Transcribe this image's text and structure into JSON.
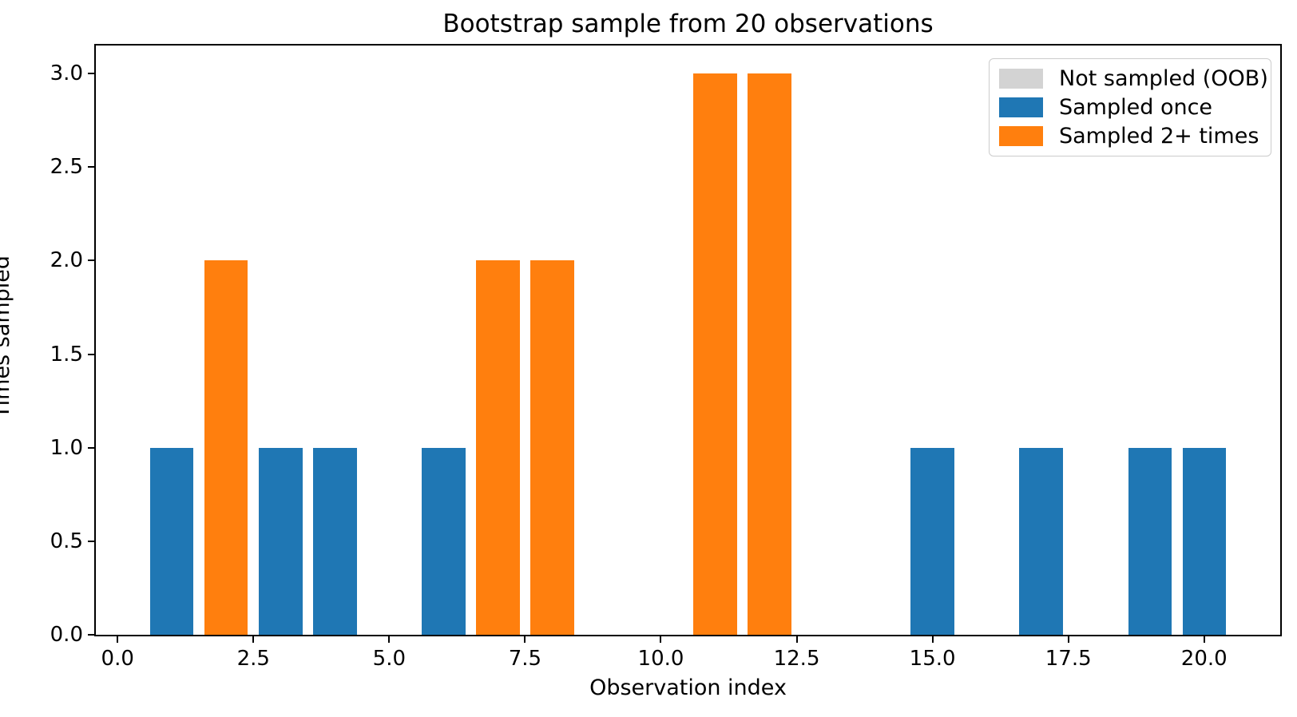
{
  "chart_data": {
    "type": "bar",
    "title": "Bootstrap sample from 20 observations",
    "xlabel": "Observation index",
    "ylabel": "Times sampled",
    "categories": [
      1,
      2,
      3,
      4,
      5,
      6,
      7,
      8,
      9,
      10,
      11,
      12,
      13,
      14,
      15,
      16,
      17,
      18,
      19,
      20
    ],
    "values": [
      1,
      2,
      1,
      1,
      0,
      1,
      2,
      2,
      0,
      0,
      3,
      3,
      0,
      0,
      1,
      0,
      1,
      0,
      1,
      1
    ],
    "bar_width": 0.8,
    "xlim": [
      -0.4,
      21.4
    ],
    "ylim": [
      0,
      3.15
    ],
    "xticks": [
      0,
      2.5,
      5,
      7.5,
      10,
      12.5,
      15,
      17.5,
      20
    ],
    "xtick_labels": [
      "0.0",
      "2.5",
      "5.0",
      "7.5",
      "10.0",
      "12.5",
      "15.0",
      "17.5",
      "20.0"
    ],
    "yticks": [
      0,
      0.5,
      1,
      1.5,
      2,
      2.5,
      3
    ],
    "ytick_labels": [
      "0.0",
      "0.5",
      "1.0",
      "1.5",
      "2.0",
      "2.5",
      "3.0"
    ],
    "grid": false,
    "colors": {
      "not_sampled_oob": "#d3d3d3",
      "sampled_once": "#1f77b4",
      "sampled_multi": "#ff7f0e",
      "axis": "#000000",
      "legend_border": "#cccccc"
    },
    "legend": {
      "position": "upper right",
      "entries": [
        {
          "label": "Not sampled (OOB)",
          "color": "#d3d3d3"
        },
        {
          "label": "Sampled once",
          "color": "#1f77b4"
        },
        {
          "label": "Sampled 2+ times",
          "color": "#ff7f0e"
        }
      ]
    }
  }
}
